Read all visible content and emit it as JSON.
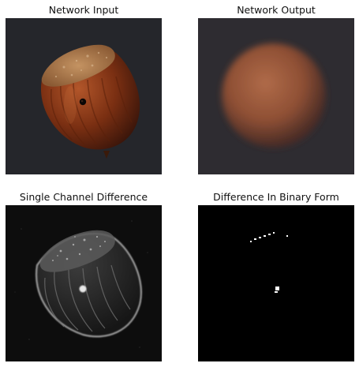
{
  "panels": [
    {
      "title": "Network Input"
    },
    {
      "title": "Network Output"
    },
    {
      "title": "Single Channel Difference"
    },
    {
      "title": "Difference In Binary Form"
    }
  ],
  "colors": {
    "background": "#ffffff",
    "input_background": "#25262b",
    "hazelnut_shell": "#7a2f12",
    "hazelnut_cap": "#a97748",
    "output_background": "#2e2c31",
    "output_blob": "#9c5a3d",
    "difference_background": "#0d0d0d",
    "binary_background": "#000000",
    "binary_foreground": "#ffffff"
  }
}
